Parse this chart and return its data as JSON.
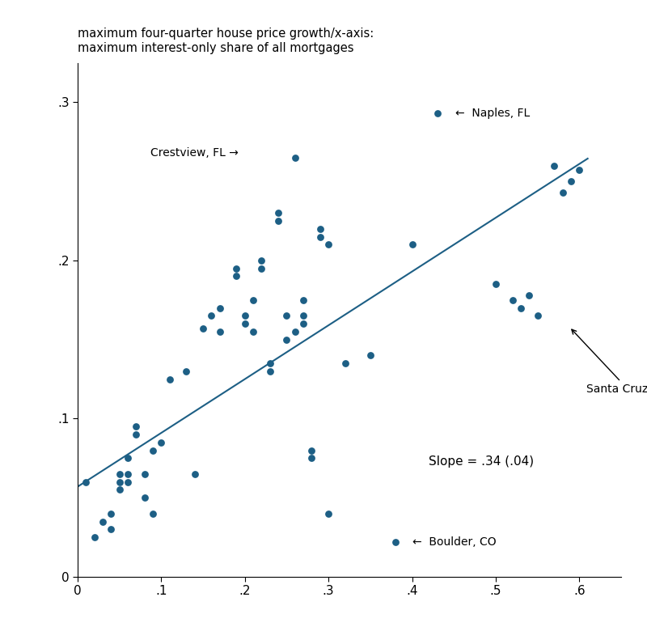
{
  "title": "maximum four-quarter house price growth/x-axis:\nmaximum interest-only share of all mortgages",
  "dot_color": "#1d5f85",
  "line_color": "#1d5f85",
  "slope_text": "Slope = .34 (.04)",
  "slope": 0.34,
  "intercept": 0.057,
  "scatter_x": [
    0.01,
    0.02,
    0.03,
    0.04,
    0.04,
    0.05,
    0.05,
    0.05,
    0.06,
    0.06,
    0.06,
    0.07,
    0.07,
    0.08,
    0.08,
    0.09,
    0.09,
    0.1,
    0.11,
    0.13,
    0.14,
    0.15,
    0.16,
    0.17,
    0.17,
    0.19,
    0.19,
    0.2,
    0.2,
    0.21,
    0.21,
    0.22,
    0.22,
    0.23,
    0.23,
    0.24,
    0.24,
    0.25,
    0.25,
    0.26,
    0.26,
    0.27,
    0.27,
    0.27,
    0.28,
    0.28,
    0.29,
    0.29,
    0.3,
    0.3,
    0.32,
    0.35,
    0.38,
    0.4,
    0.43,
    0.5,
    0.52,
    0.53,
    0.54,
    0.55,
    0.57,
    0.58,
    0.59,
    0.6
  ],
  "scatter_y": [
    0.06,
    0.025,
    0.035,
    0.03,
    0.04,
    0.055,
    0.06,
    0.065,
    0.06,
    0.065,
    0.075,
    0.09,
    0.095,
    0.05,
    0.065,
    0.04,
    0.08,
    0.085,
    0.125,
    0.13,
    0.065,
    0.157,
    0.165,
    0.17,
    0.155,
    0.19,
    0.195,
    0.16,
    0.165,
    0.155,
    0.175,
    0.195,
    0.2,
    0.13,
    0.135,
    0.225,
    0.23,
    0.15,
    0.165,
    0.155,
    0.265,
    0.16,
    0.165,
    0.175,
    0.08,
    0.075,
    0.215,
    0.22,
    0.04,
    0.21,
    0.135,
    0.14,
    0.022,
    0.21,
    0.293,
    0.185,
    0.175,
    0.17,
    0.178,
    0.165,
    0.26,
    0.243,
    0.25,
    0.257
  ],
  "xlim": [
    0,
    0.65
  ],
  "ylim": [
    0,
    0.325
  ],
  "xticks": [
    0,
    0.1,
    0.2,
    0.3,
    0.4,
    0.5,
    0.6
  ],
  "yticks": [
    0,
    0.1,
    0.2,
    0.3
  ],
  "xtick_labels": [
    "0",
    ".1",
    ".2",
    ".3",
    ".4",
    ".5",
    ".6"
  ],
  "ytick_labels": [
    "0",
    ".1",
    ".2",
    ".3"
  ]
}
